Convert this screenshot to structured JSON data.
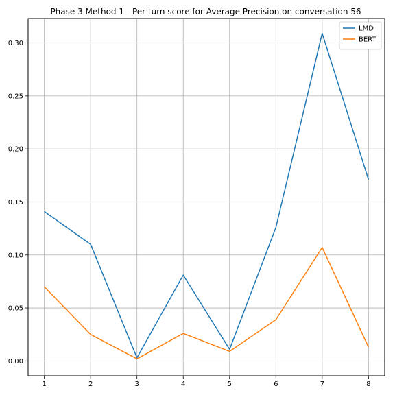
{
  "chart_data": {
    "type": "line",
    "title": "Phase 3 Method 1 - Per turn score for Average Precision on conversation 56",
    "xlabel": "",
    "ylabel": "",
    "x": [
      1,
      2,
      3,
      4,
      5,
      6,
      7,
      8
    ],
    "x_ticks": [
      "1",
      "2",
      "3",
      "4",
      "5",
      "6",
      "7",
      "8"
    ],
    "y_ticks": [
      "0.00",
      "0.05",
      "0.10",
      "0.15",
      "0.20",
      "0.25",
      "0.30"
    ],
    "xlim": [
      0.65,
      8.35
    ],
    "ylim": [
      -0.014,
      0.323
    ],
    "grid": true,
    "legend_position": "top-right",
    "series": [
      {
        "name": "LMD",
        "color": "#1f77b4",
        "values": [
          0.141,
          0.11,
          0.003,
          0.081,
          0.011,
          0.126,
          0.309,
          0.171
        ]
      },
      {
        "name": "BERT",
        "color": "#ff7f0e",
        "values": [
          0.07,
          0.025,
          0.002,
          0.026,
          0.009,
          0.039,
          0.107,
          0.013
        ]
      }
    ]
  }
}
